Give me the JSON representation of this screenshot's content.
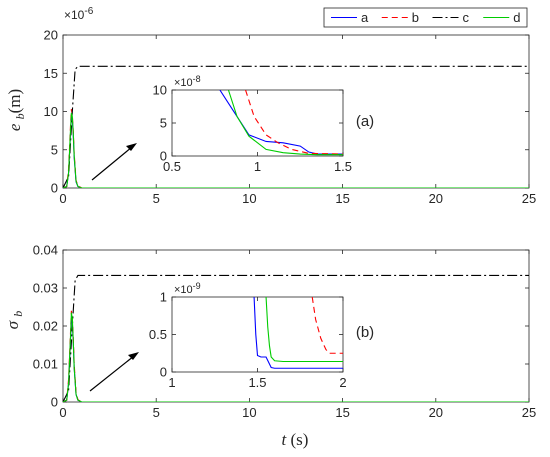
{
  "chart_data": [
    {
      "type": "line",
      "panel_label": "(a)",
      "ylabel": "e_b(m)",
      "xlabel": "",
      "y_multiplier": "×10",
      "y_multiplier_exp": "-6",
      "xlim": [
        0,
        25
      ],
      "ylim": [
        0,
        20
      ],
      "xticks": [
        0,
        5,
        10,
        15,
        20,
        25
      ],
      "yticks": [
        0,
        5,
        10,
        15,
        20
      ],
      "grid": false,
      "legend": {
        "placement": "top-right",
        "orientation": "horizontal"
      },
      "series": [
        {
          "name": "a",
          "color": "#0000ff",
          "dash": "solid",
          "x": [
            0,
            0.2,
            0.3,
            0.4,
            0.45,
            0.5,
            0.55,
            0.6,
            0.7,
            0.8,
            1.0,
            25
          ],
          "y": [
            0,
            0.2,
            2,
            7,
            9.3,
            9.0,
            7,
            4,
            0.8,
            0.2,
            0,
            0
          ]
        },
        {
          "name": "b",
          "color": "#ff0000",
          "dash": "6,4",
          "x": [
            0,
            0.2,
            0.3,
            0.4,
            0.45,
            0.5,
            0.55,
            0.6,
            0.7,
            0.8,
            1.0,
            25
          ],
          "y": [
            0,
            0.2,
            2.5,
            8,
            10.3,
            9.5,
            7.5,
            4.5,
            1,
            0.3,
            0,
            0
          ]
        },
        {
          "name": "c",
          "color": "#000000",
          "dash": "10,3,2,3",
          "x": [
            0,
            0.3,
            0.5,
            0.65,
            0.8,
            25
          ],
          "y": [
            0,
            1.5,
            10,
            15.5,
            15.9,
            15.9
          ]
        },
        {
          "name": "d",
          "color": "#00cc00",
          "dash": "solid",
          "x": [
            0,
            0.2,
            0.3,
            0.4,
            0.45,
            0.5,
            0.55,
            0.6,
            0.7,
            0.8,
            1.0,
            25
          ],
          "y": [
            0,
            0.2,
            2,
            7.5,
            9.8,
            9.3,
            7.2,
            4.2,
            0.9,
            0.2,
            0,
            0
          ]
        }
      ],
      "inset": {
        "xlim": [
          0.5,
          1.5
        ],
        "ylim": [
          0,
          10
        ],
        "xticks": [
          0.5,
          1,
          1.5
        ],
        "yticks": [
          0,
          5,
          10
        ],
        "y_multiplier": "×10",
        "y_multiplier_exp": "-8",
        "series": [
          {
            "name": "a",
            "x": [
              0.78,
              0.88,
              0.95,
              1.05,
              1.15,
              1.25,
              1.3,
              1.35,
              1.5
            ],
            "y": [
              10,
              6,
              3.2,
              2.2,
              2.0,
              1.5,
              0.6,
              0.3,
              0.3
            ]
          },
          {
            "name": "b",
            "x": [
              0.93,
              0.98,
              1.05,
              1.12,
              1.2,
              1.3,
              1.5
            ],
            "y": [
              10,
              6,
              3.2,
              2.0,
              1.0,
              0.4,
              0.3
            ]
          },
          {
            "name": "c",
            "x": [],
            "y": []
          },
          {
            "name": "d",
            "x": [
              0.83,
              0.88,
              0.95,
              1.05,
              1.15,
              1.25,
              1.35,
              1.5
            ],
            "y": [
              10,
              6,
              3.0,
              1.0,
              0.5,
              0.3,
              0.2,
              0.2
            ]
          }
        ]
      }
    },
    {
      "type": "line",
      "panel_label": "(b)",
      "ylabel": "σ_b",
      "xlabel": "t(s)",
      "xlim": [
        0,
        25
      ],
      "ylim": [
        0,
        0.04
      ],
      "xticks": [
        0,
        5,
        10,
        15,
        20,
        25
      ],
      "yticks": [
        0,
        0.01,
        0.02,
        0.03,
        0.04
      ],
      "grid": false,
      "series": [
        {
          "name": "a",
          "x": [
            0,
            0.2,
            0.3,
            0.4,
            0.45,
            0.5,
            0.55,
            0.6,
            0.7,
            0.8,
            1.0,
            25
          ],
          "y": [
            0,
            0.0005,
            0.005,
            0.016,
            0.022,
            0.021,
            0.016,
            0.009,
            0.002,
            0.0005,
            0,
            0
          ]
        },
        {
          "name": "b",
          "x": [
            0,
            0.2,
            0.3,
            0.4,
            0.45,
            0.5,
            0.55,
            0.6,
            0.7,
            0.8,
            1.0,
            25
          ],
          "y": [
            0,
            0.0005,
            0.006,
            0.018,
            0.024,
            0.022,
            0.017,
            0.01,
            0.0025,
            0.0006,
            0,
            0
          ]
        },
        {
          "name": "c",
          "x": [
            0,
            0.3,
            0.5,
            0.65,
            0.8,
            25
          ],
          "y": [
            0,
            0.003,
            0.02,
            0.032,
            0.0333,
            0.0333
          ]
        },
        {
          "name": "d",
          "x": [
            0,
            0.2,
            0.3,
            0.4,
            0.45,
            0.5,
            0.55,
            0.6,
            0.7,
            0.8,
            1.0,
            25
          ],
          "y": [
            0,
            0.0005,
            0.005,
            0.017,
            0.0235,
            0.022,
            0.016,
            0.009,
            0.002,
            0.0005,
            0,
            0
          ]
        }
      ],
      "inset": {
        "xlim": [
          1,
          2
        ],
        "ylim": [
          0,
          1
        ],
        "xticks": [
          1,
          1.5,
          2
        ],
        "yticks": [
          0,
          0.5,
          1
        ],
        "y_multiplier": "×10",
        "y_multiplier_exp": "-9",
        "series": [
          {
            "name": "a",
            "x": [
              1.48,
              1.49,
              1.5,
              1.52,
              1.55,
              1.58,
              1.6,
              2.0
            ],
            "y": [
              1,
              0.5,
              0.22,
              0.2,
              0.2,
              0.06,
              0.05,
              0.05
            ]
          },
          {
            "name": "b",
            "x": [
              1.82,
              1.84,
              1.87,
              1.9,
              1.92,
              2.0
            ],
            "y": [
              1,
              0.7,
              0.45,
              0.3,
              0.25,
              0.25
            ]
          },
          {
            "name": "c",
            "x": [],
            "y": []
          },
          {
            "name": "d",
            "x": [
              1.55,
              1.56,
              1.57,
              1.58,
              1.6,
              1.65,
              2.0
            ],
            "y": [
              1,
              0.6,
              0.35,
              0.2,
              0.15,
              0.14,
              0.14
            ]
          }
        ]
      }
    }
  ]
}
